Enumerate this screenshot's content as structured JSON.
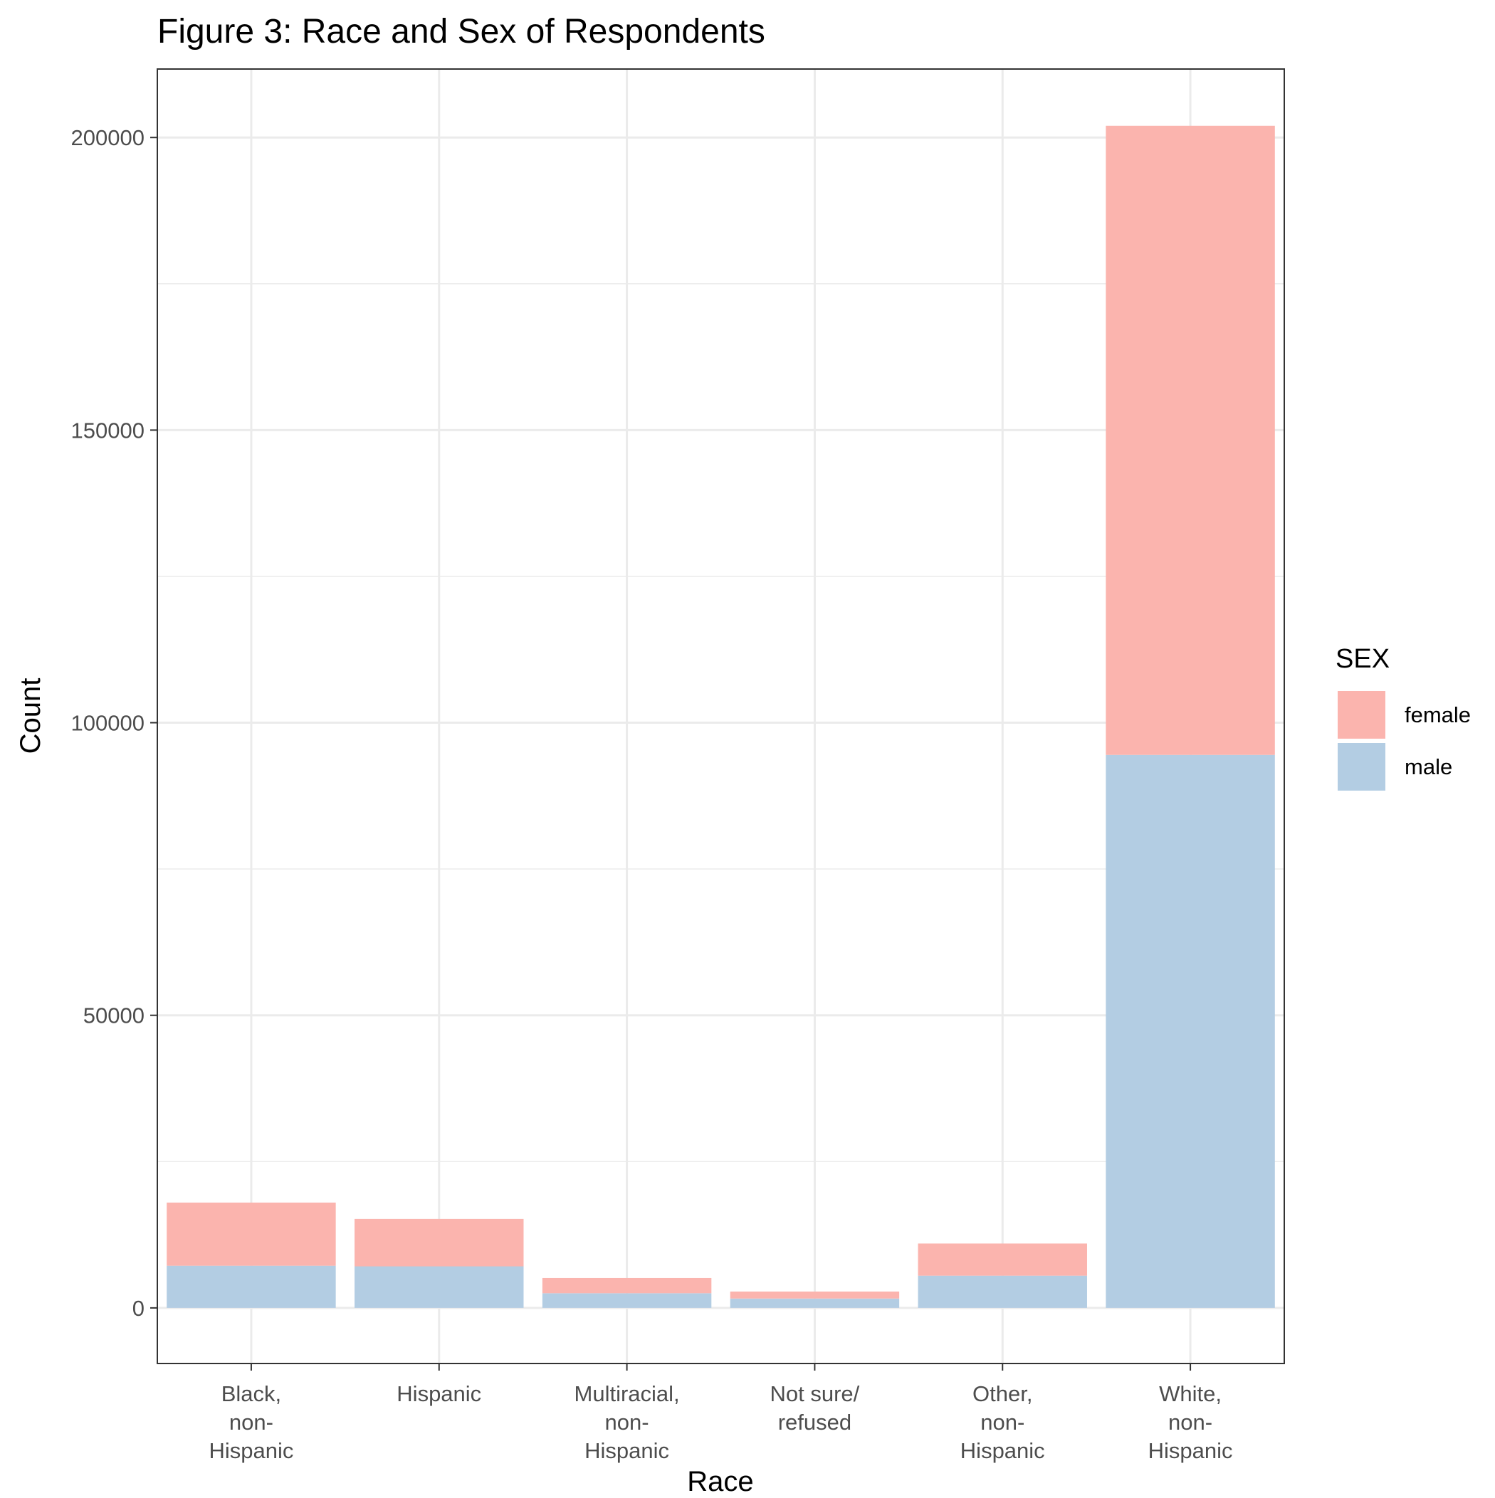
{
  "chart_data": {
    "type": "bar",
    "stacked": true,
    "title": "Figure 3: Race and Sex of Respondents",
    "xlabel": "Race",
    "ylabel": "Count",
    "categories": [
      [
        "Black,",
        "non-",
        "Hispanic"
      ],
      [
        "Hispanic"
      ],
      [
        "Multiracial,",
        "non-",
        "Hispanic"
      ],
      [
        "Not sure/",
        "refused"
      ],
      [
        "Other,",
        "non-",
        "Hispanic"
      ],
      [
        "White,",
        "non-",
        "Hispanic"
      ]
    ],
    "series": [
      {
        "name": "male",
        "color": "#b3cde3",
        "values": [
          7200,
          7100,
          2500,
          1600,
          5500,
          94500
        ]
      },
      {
        "name": "female",
        "color": "#fbb4ae",
        "values": [
          10800,
          8100,
          2600,
          1200,
          5500,
          107500
        ]
      }
    ],
    "ylim": [
      -9500,
      211700
    ],
    "yticks": [
      0,
      50000,
      100000,
      150000,
      200000
    ],
    "grid": true,
    "legend": {
      "title": "SEX",
      "placement": "right",
      "order": [
        "female",
        "male"
      ]
    }
  }
}
